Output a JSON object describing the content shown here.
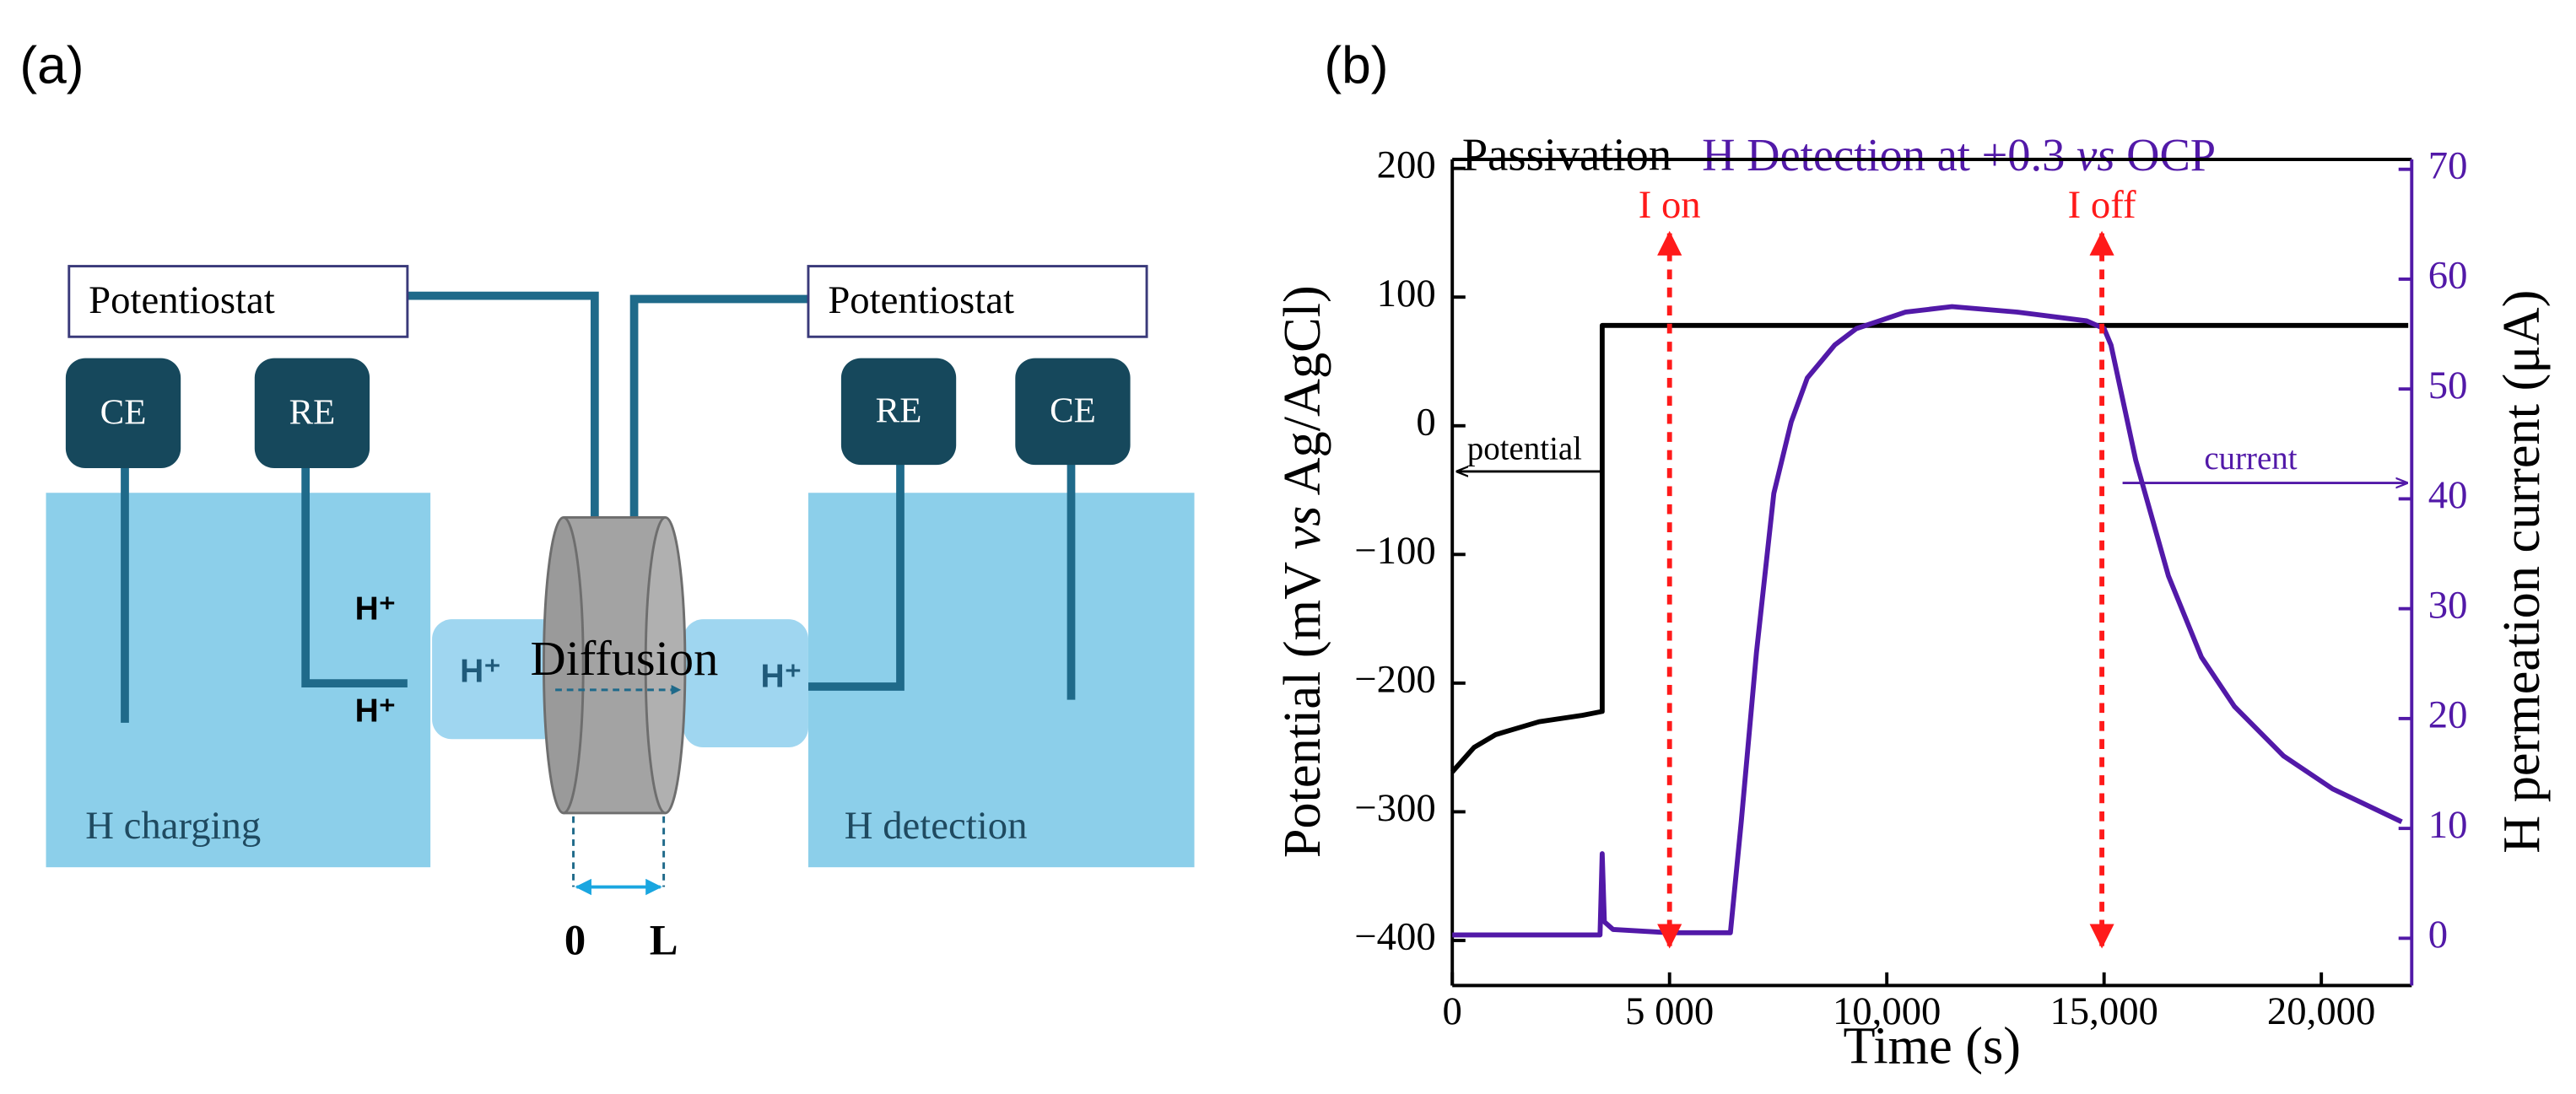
{
  "panel_a": {
    "label": "(a)",
    "potentiostat_left": "Potentiostat",
    "potentiostat_right": "Potentiostat",
    "ce_left": "CE",
    "re_left": "RE",
    "re_right": "RE",
    "ce_right": "CE",
    "h_plus_upper": "H⁺",
    "h_plus_lower": "H⁺",
    "h_plus_left_box": "H⁺",
    "h_plus_right_box": "H⁺",
    "diffusion": "Diffusion",
    "charging": "H charging",
    "detection": "H detection",
    "zero": "0",
    "length": "L"
  },
  "chart_data": {
    "type": "line",
    "panel_label": "(b)",
    "annotation_left": "Passivation",
    "annotation_right": [
      "H Detection at +0.3 ",
      "vs",
      " OCP"
    ],
    "xlabel": "Time (s)",
    "ylabel": [
      "Potential (mV ",
      "vs",
      " Ag/AgCl)"
    ],
    "y2label": "H permeation current (μA)",
    "potential_label": "potential",
    "current_label": "current",
    "xlim": [
      0,
      22080
    ],
    "ylim": [
      -435,
      207
    ],
    "y2lim": [
      -4.3,
      70.9
    ],
    "xticks": [
      0,
      {
        "value": 5000,
        "label": "5 000"
      },
      {
        "value": 10000,
        "label": "10,000"
      },
      {
        "value": 15000,
        "label": "15,000"
      },
      {
        "value": 20000,
        "label": "20,000"
      }
    ],
    "yticks": [
      {
        "value": -400,
        "label": "−400"
      },
      {
        "value": -300,
        "label": "−300"
      },
      {
        "value": -200,
        "label": "−200"
      },
      {
        "value": -100,
        "label": "−100"
      },
      0,
      100,
      200
    ],
    "y2ticks": [
      0,
      10,
      20,
      30,
      40,
      50,
      60,
      70
    ],
    "events": [
      {
        "label": "I on",
        "x": 5000
      },
      {
        "label": "I off",
        "x": 14950
      }
    ],
    "event_color": "#ff1a1a",
    "series": [
      {
        "name": "potential",
        "color": "#000000",
        "x": [
          0,
          500,
          1000,
          2000,
          3000,
          3450,
          3450,
          22000
        ],
        "values": [
          -269,
          -250,
          -240,
          -230,
          -225,
          -222,
          78,
          78
        ]
      },
      {
        "name": "current",
        "color": "#5219a8",
        "axis": "y2",
        "x": [
          0,
          3400,
          3450,
          3500,
          3700,
          5000,
          6400,
          6650,
          7000,
          7400,
          7800,
          8170,
          8800,
          9300,
          10430,
          11500,
          13000,
          14600,
          15000,
          15160,
          15730,
          16480,
          17240,
          18000,
          19130,
          20260,
          21850
        ],
        "values": [
          0.3,
          0.3,
          7.7,
          1.5,
          0.8,
          0.5,
          0.5,
          10.6,
          26,
          40.5,
          47,
          51,
          54,
          55.5,
          57,
          57.5,
          57,
          56.2,
          55.5,
          54,
          43.5,
          33,
          25.6,
          21.1,
          16.6,
          13.6,
          10.6
        ]
      }
    ]
  }
}
